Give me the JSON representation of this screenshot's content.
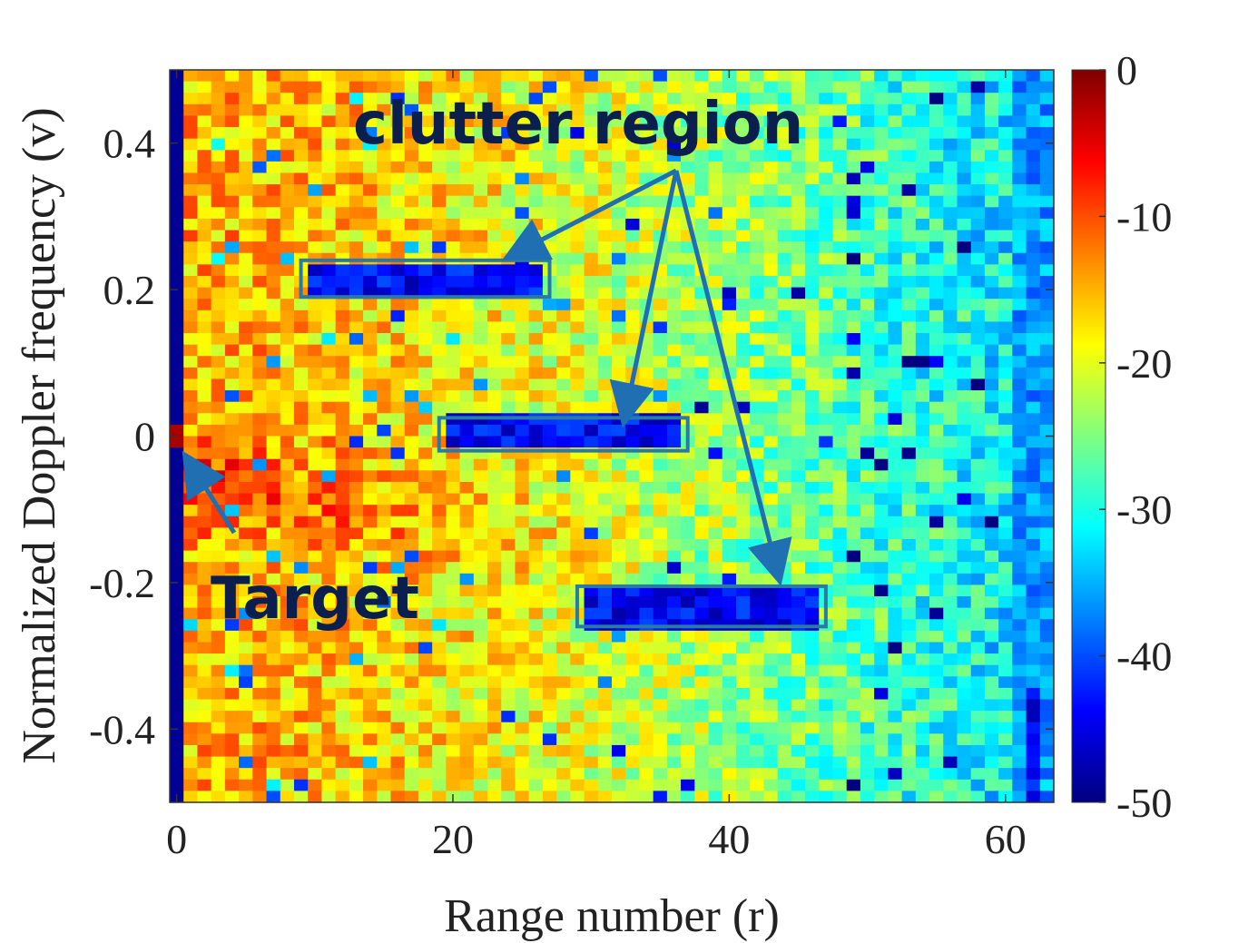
{
  "chart_data": {
    "type": "heatmap",
    "title": "",
    "xlabel": "Range number (r)",
    "ylabel": "Normalized Doppler frequency (v)",
    "xlim": [
      0,
      63
    ],
    "ylim": [
      -0.5,
      0.5
    ],
    "x_ticks": [
      0,
      20,
      40,
      60
    ],
    "x_tick_labels": [
      "0",
      "20",
      "40",
      "60"
    ],
    "y_ticks": [
      0.4,
      0.2,
      0,
      -0.2,
      -0.4
    ],
    "y_tick_labels": [
      "0.4",
      "0.2",
      "0",
      "-0.2",
      "-0.4"
    ],
    "grid": {
      "range_bins": 64,
      "doppler_bins": 64
    },
    "colormap": "jet",
    "colorbar": {
      "range": [
        -50,
        0
      ],
      "ticks": [
        0,
        -10,
        -20,
        -30,
        -40,
        -50
      ],
      "tick_labels": [
        "0",
        "-10",
        "-20",
        "-30",
        "-40",
        "-50"
      ]
    },
    "target": {
      "range": 0,
      "doppler": 0,
      "value": -2
    },
    "clutter_regions": [
      {
        "r_range": [
          9,
          27
        ],
        "v_range": [
          0.19,
          0.24
        ]
      },
      {
        "r_range": [
          19,
          37
        ],
        "v_range": [
          -0.02,
          0.025
        ]
      },
      {
        "r_range": [
          29,
          47
        ],
        "v_range": [
          -0.26,
          -0.205
        ]
      }
    ],
    "annotations": [
      {
        "text": "clutter region"
      },
      {
        "text": "Target"
      }
    ]
  },
  "colors": {
    "annotation_text": "#0b1f4f",
    "annotation_arrow": "#1f6fb2",
    "clutter_box": "#2a7aa8"
  }
}
